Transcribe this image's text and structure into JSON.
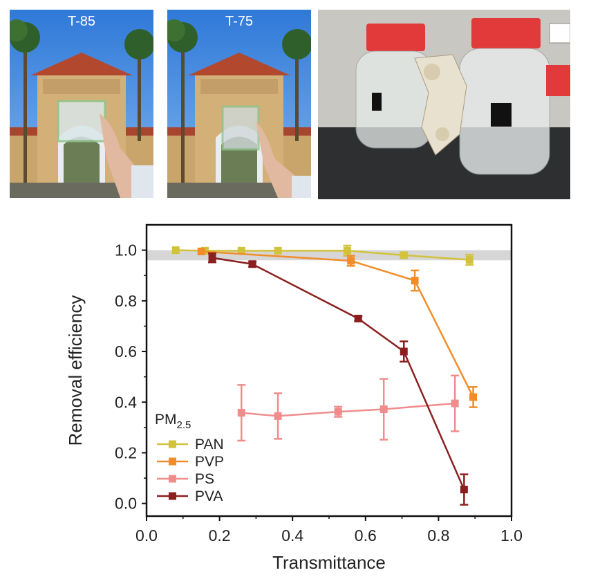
{
  "photos": {
    "left_label": "T-85",
    "middle_label": "T-75"
  },
  "chart_data": {
    "type": "line",
    "xlabel": "Transmittance",
    "ylabel": "Removal efficiency",
    "xlim": [
      0.0,
      1.0
    ],
    "ylim": [
      -0.05,
      1.1
    ],
    "xticks": [
      "0.0",
      "0.2",
      "0.4",
      "0.6",
      "0.8",
      "1.0"
    ],
    "yticks": [
      "0.0",
      "0.2",
      "0.4",
      "0.6",
      "0.8",
      "1.0"
    ],
    "shaded_band": [
      0.96,
      1.0
    ],
    "legend_title": "PM",
    "legend_title_sub": "2.5",
    "legend_position": "bottom-left",
    "series": [
      {
        "name": "PAN",
        "color": "#d2c23a",
        "points": [
          [
            0.08,
            1.0,
            0
          ],
          [
            0.16,
            0.998,
            0
          ],
          [
            0.26,
            0.998,
            0
          ],
          [
            0.36,
            0.998,
            0
          ],
          [
            0.55,
            0.998,
            0.02
          ],
          [
            0.705,
            0.98,
            0.01
          ],
          [
            0.885,
            0.962,
            0.02
          ]
        ]
      },
      {
        "name": "PVP",
        "color": "#f18d28",
        "points": [
          [
            0.15,
            0.995,
            0
          ],
          [
            0.56,
            0.958,
            0.02
          ],
          [
            0.735,
            0.88,
            0.04
          ],
          [
            0.895,
            0.42,
            0.04
          ]
        ]
      },
      {
        "name": "PS",
        "color": "#f08c8c",
        "points": [
          [
            0.26,
            0.358,
            0.11
          ],
          [
            0.36,
            0.345,
            0.09
          ],
          [
            0.525,
            0.362,
            0.02
          ],
          [
            0.65,
            0.372,
            0.12
          ],
          [
            0.845,
            0.395,
            0.11
          ]
        ]
      },
      {
        "name": "PVA",
        "color": "#8b1f1f",
        "points": [
          [
            0.18,
            0.97,
            0.018
          ],
          [
            0.29,
            0.945,
            0.01
          ],
          [
            0.58,
            0.73,
            0.01
          ],
          [
            0.705,
            0.6,
            0.04
          ],
          [
            0.87,
            0.055,
            0.06
          ]
        ]
      }
    ]
  }
}
